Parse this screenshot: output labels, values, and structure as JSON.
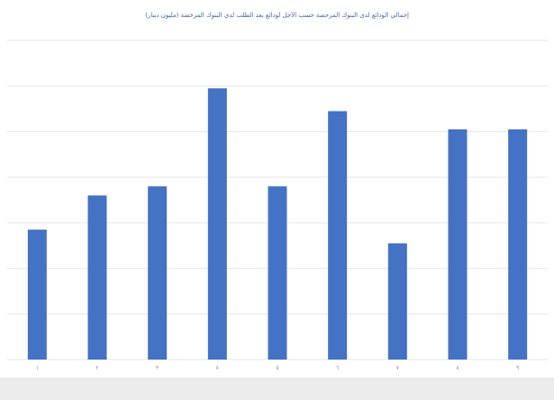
{
  "chart_data": {
    "type": "bar",
    "title": "إجمالي الودائع لدى البنوك المرخصة حسب الأجل لودائع بعد الطلب لدى البنوك المرخصة (مليون دينار)",
    "xlabel": "",
    "ylabel": "",
    "categories": [
      "١",
      "٢",
      "٣",
      "٤",
      "٥",
      "٦",
      "٧",
      "٨",
      "٩"
    ],
    "values": [
      2.85,
      3.6,
      3.8,
      5.95,
      3.8,
      5.45,
      2.55,
      5.05,
      5.05
    ],
    "ylim": [
      0,
      7
    ],
    "grid": true,
    "bar_color": "#4472c4",
    "gridline_color": "#e6e6e6"
  }
}
